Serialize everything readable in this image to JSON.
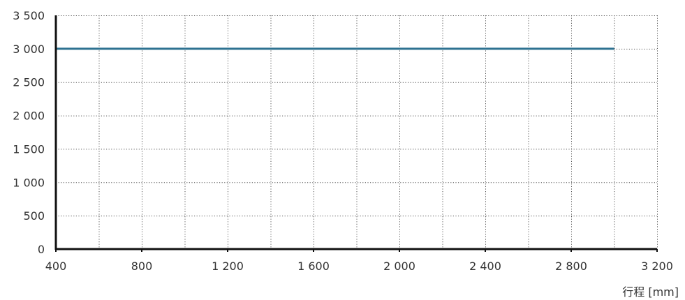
{
  "chart_data": {
    "type": "line",
    "title": "",
    "xlabel": "行程 [mm]",
    "ylabel": "",
    "xlim": [
      400,
      3200
    ],
    "ylim": [
      0,
      3500
    ],
    "x_ticks": [
      400,
      800,
      1200,
      1600,
      2000,
      2400,
      2800,
      3200
    ],
    "x_tick_labels": [
      "400",
      "800",
      "1 200",
      "1 600",
      "2 000",
      "2 400",
      "2 800",
      "3 200"
    ],
    "y_ticks": [
      0,
      500,
      1000,
      1500,
      2000,
      2500,
      3000,
      3500
    ],
    "y_tick_labels": [
      "0",
      "500",
      "1 000",
      "1 500",
      "2 000",
      "2 500",
      "3 000",
      "3 500"
    ],
    "x_minor_grid": [
      600,
      1000,
      1400,
      1800,
      2200,
      2600,
      3000
    ],
    "grid": true,
    "grid_style": "dotted",
    "series": [
      {
        "x": [
          400,
          3000
        ],
        "y": [
          3000,
          3000
        ],
        "color": "#2e7291"
      }
    ],
    "colors": {
      "axis": "#111111",
      "grid": "#555555",
      "text": "#333333"
    }
  }
}
